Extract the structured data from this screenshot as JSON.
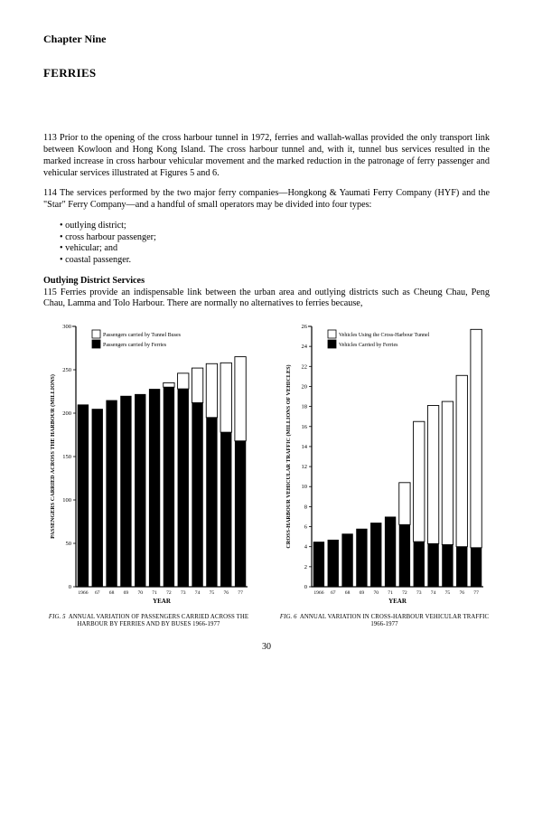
{
  "chapter": "Chapter Nine",
  "title": "FERRIES",
  "para113": "113 Prior to the opening of the cross harbour tunnel in 1972, ferries and wallah-wallas provided the only transport link between Kowloon and Hong Kong Island. The cross harbour tunnel and, with it, tunnel bus services resulted in the marked increase in cross harbour vehicular movement and the marked reduction in the patronage of ferry passenger and vehicular services illustrated at Figures 5 and 6.",
  "para114": "114 The services performed by the two major ferry companies—Hongkong & Yaumati Ferry Company (HYF) and the \"Star\" Ferry Company—and a handful of small operators may be divided into four types:",
  "bullets": [
    "outlying district;",
    "cross harbour passenger;",
    "vehicular; and",
    "coastal passenger."
  ],
  "subhead": "Outlying District Services",
  "para115": "115 Ferries provide an indispensable link between the urban area and outlying districts such as Cheung Chau, Peng Chau, Lamma and Tolo Harbour. There are normally no alternatives to ferries because,",
  "fig5": {
    "type": "stacked-bar",
    "ylabel": "PASSENGERS CARRIED ACROSS THE HARBOUR (MILLIONS)",
    "xlabel": "YEAR",
    "caption_fig": "FIG. 5",
    "caption": "ANNUAL VARIATION OF PASSENGERS CARRIED ACROSS THE HARBOUR BY FERRIES AND BY BUSES 1966-1977",
    "legend": [
      {
        "swatch": "white",
        "label": "Passengers carried by Tunnel Buses"
      },
      {
        "swatch": "black",
        "label": "Passengers carried by Ferries"
      }
    ],
    "years": [
      "1966",
      "67",
      "68",
      "69",
      "70",
      "71",
      "72",
      "73",
      "74",
      "75",
      "76",
      "77"
    ],
    "ferries": [
      210,
      205,
      215,
      220,
      222,
      228,
      230,
      228,
      212,
      195,
      178,
      168
    ],
    "buses": [
      0,
      0,
      0,
      0,
      0,
      0,
      5,
      18,
      40,
      62,
      80,
      97
    ],
    "ymax": 300,
    "ytick": 50,
    "colors": {
      "ferries": "#000000",
      "buses_fill": "#ffffff",
      "buses_stroke": "#000000",
      "axis": "#000000"
    },
    "bar_width": 0.78
  },
  "fig6": {
    "type": "stacked-bar",
    "ylabel": "CROSS-HARBOUR VEHICULAR TRAFFIC (MILLIONS OF VEHICLES)",
    "xlabel": "YEAR",
    "caption_fig": "FIG. 6",
    "caption": "ANNUAL VARIATION IN CROSS-HARBOUR VEHICULAR TRAFFIC 1966-1977",
    "legend": [
      {
        "swatch": "white",
        "label": "Vehicles Using the Cross-Harbour Tunnel"
      },
      {
        "swatch": "black",
        "label": "Vehicles Carried by Ferries"
      }
    ],
    "years": [
      "1966",
      "67",
      "68",
      "69",
      "70",
      "71",
      "72",
      "73",
      "74",
      "75",
      "76",
      "77"
    ],
    "ferries": [
      4.5,
      4.7,
      5.3,
      5.8,
      6.4,
      7.0,
      6.2,
      4.5,
      4.3,
      4.2,
      4.0,
      3.9
    ],
    "tunnel": [
      0,
      0,
      0,
      0,
      0,
      0,
      4.2,
      12.0,
      13.8,
      14.3,
      17.1,
      21.8
    ],
    "ymax": 26,
    "ytick": 2,
    "colors": {
      "ferries": "#000000",
      "tunnel_fill": "#ffffff",
      "tunnel_stroke": "#000000",
      "axis": "#000000"
    },
    "bar_width": 0.78
  },
  "page_number": "30"
}
